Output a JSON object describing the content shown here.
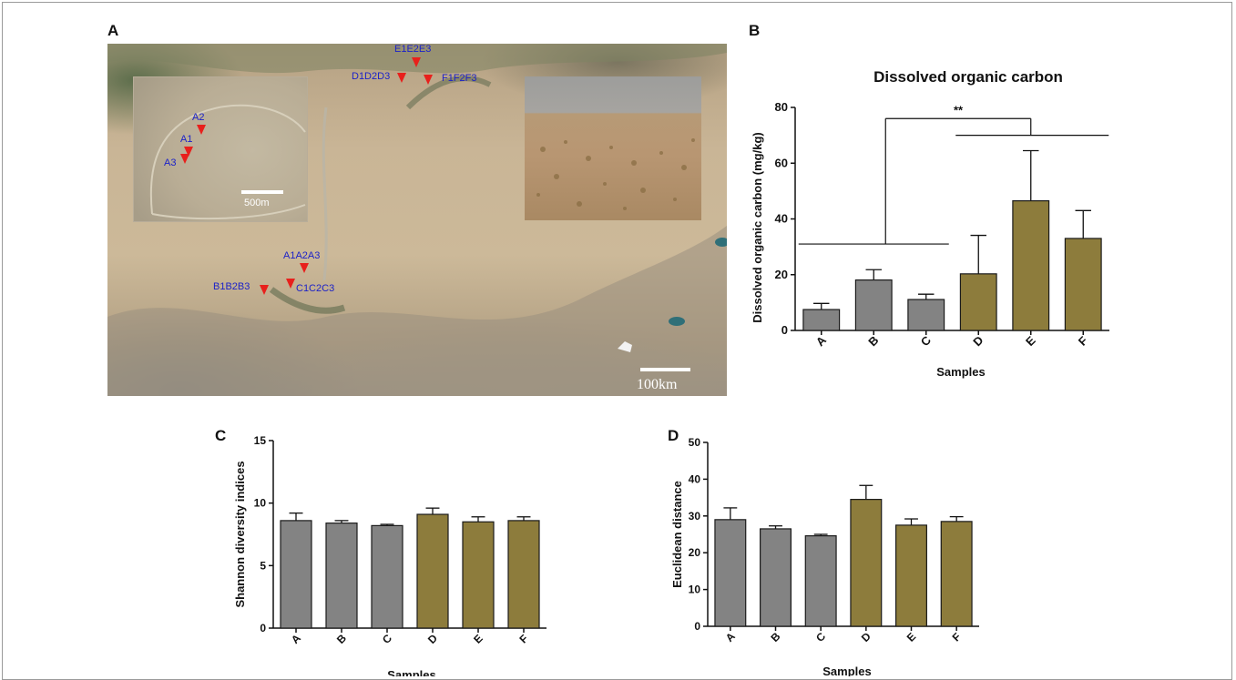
{
  "panels": {
    "a": "A",
    "b": "B",
    "c": "C",
    "d": "D"
  },
  "map": {
    "sites_main": [
      {
        "id": "E1E2E3"
      },
      {
        "id": "D1D2D3"
      },
      {
        "id": "F1F2F3"
      },
      {
        "id": "A1A2A3"
      },
      {
        "id": "B1B2B3"
      },
      {
        "id": "C1C2C3"
      }
    ],
    "sites_inset": [
      {
        "id": "A2"
      },
      {
        "id": "A1"
      },
      {
        "id": "A3"
      }
    ],
    "inset_scale": "500m",
    "main_scale": "100km"
  },
  "colors": {
    "gray": "#838383",
    "olive": "#8d7c3c",
    "outline": "#1a1a1a"
  },
  "chart_data": [
    {
      "type": "bar",
      "title": "Dissolved organic carbon",
      "xlabel": "Samples",
      "ylabel": "Dissolved organic carbon (mg/kg)",
      "categories": [
        "A",
        "B",
        "C",
        "D",
        "E",
        "F"
      ],
      "values": [
        7.5,
        18.1,
        11.1,
        20.3,
        46.5,
        33.0
      ],
      "errors": [
        2.2,
        3.7,
        1.9,
        13.8,
        18.0,
        10.0
      ],
      "colors": [
        "gray",
        "gray",
        "gray",
        "olive",
        "olive",
        "olive"
      ],
      "ylim": [
        0,
        80
      ],
      "yticks": [
        "0",
        "20",
        "40",
        "60",
        "80"
      ],
      "ytick_values": [
        0,
        20,
        40,
        60,
        80
      ],
      "significance": "**"
    },
    {
      "type": "bar",
      "title": "",
      "xlabel": "Samples",
      "ylabel": "Shannon diversity indices",
      "categories": [
        "A",
        "B",
        "C",
        "D",
        "E",
        "F"
      ],
      "values": [
        8.6,
        8.4,
        8.2,
        9.1,
        8.5,
        8.6
      ],
      "errors": [
        0.6,
        0.2,
        0.1,
        0.5,
        0.4,
        0.3
      ],
      "colors": [
        "gray",
        "gray",
        "gray",
        "olive",
        "olive",
        "olive"
      ],
      "ylim": [
        0,
        15
      ],
      "yticks": [
        "0",
        "5",
        "10",
        "15"
      ],
      "ytick_values": [
        0,
        5,
        10,
        15
      ]
    },
    {
      "type": "bar",
      "title": "",
      "xlabel": "Samples",
      "ylabel": "Euclidean distance",
      "categories": [
        "A",
        "B",
        "C",
        "D",
        "E",
        "F"
      ],
      "values": [
        29.0,
        26.5,
        24.6,
        34.5,
        27.5,
        28.5
      ],
      "errors": [
        3.2,
        0.8,
        0.4,
        3.8,
        1.7,
        1.3
      ],
      "colors": [
        "gray",
        "gray",
        "gray",
        "olive",
        "olive",
        "olive"
      ],
      "ylim": [
        0,
        50
      ],
      "yticks": [
        "0",
        "10",
        "20",
        "30",
        "40",
        "50"
      ],
      "ytick_values": [
        0,
        10,
        20,
        30,
        40,
        50
      ]
    }
  ]
}
